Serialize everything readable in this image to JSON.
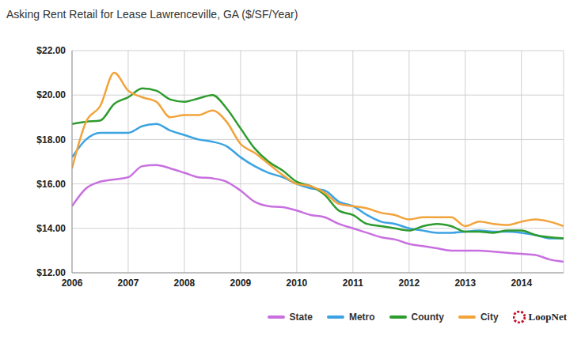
{
  "chart_data": {
    "type": "line",
    "title": "Asking Rent Retail for Lease Lawrenceville, GA ($/SF/Year)",
    "source": "LoopNet",
    "x": [
      2006,
      2006.25,
      2006.5,
      2006.75,
      2007,
      2007.25,
      2007.5,
      2007.75,
      2008,
      2008.25,
      2008.5,
      2008.75,
      2009,
      2009.25,
      2009.5,
      2009.75,
      2010,
      2010.25,
      2010.5,
      2010.75,
      2011,
      2011.25,
      2011.5,
      2011.75,
      2012,
      2012.25,
      2012.5,
      2012.75,
      2013,
      2013.25,
      2013.5,
      2013.75,
      2014,
      2014.25,
      2014.5,
      2014.75
    ],
    "series": [
      {
        "name": "State",
        "color": "#c86fe0",
        "values": [
          15.0,
          15.8,
          16.1,
          16.2,
          16.3,
          16.8,
          16.85,
          16.7,
          16.5,
          16.3,
          16.25,
          16.1,
          15.7,
          15.2,
          15.0,
          14.95,
          14.8,
          14.6,
          14.5,
          14.2,
          14.0,
          13.8,
          13.6,
          13.5,
          13.3,
          13.2,
          13.1,
          13.0,
          13.0,
          13.0,
          12.95,
          12.9,
          12.85,
          12.8,
          12.6,
          12.5
        ]
      },
      {
        "name": "Metro",
        "color": "#3ba3e3",
        "values": [
          17.2,
          18.0,
          18.3,
          18.3,
          18.3,
          18.6,
          18.7,
          18.4,
          18.2,
          18.0,
          17.9,
          17.7,
          17.2,
          16.8,
          16.5,
          16.3,
          16.0,
          15.8,
          15.7,
          15.2,
          15.0,
          14.6,
          14.3,
          14.2,
          14.0,
          13.9,
          13.8,
          13.8,
          13.85,
          13.9,
          13.85,
          13.85,
          13.8,
          13.7,
          13.55,
          13.55
        ]
      },
      {
        "name": "County",
        "color": "#2e9b2e",
        "values": [
          18.7,
          18.8,
          18.85,
          19.6,
          19.9,
          20.3,
          20.2,
          19.8,
          19.7,
          19.85,
          20.0,
          19.4,
          18.5,
          17.6,
          17.0,
          16.6,
          16.1,
          15.9,
          15.5,
          14.8,
          14.6,
          14.2,
          14.1,
          14.0,
          13.9,
          14.1,
          14.2,
          14.1,
          13.85,
          13.85,
          13.8,
          13.9,
          13.9,
          13.7,
          13.6,
          13.55
        ]
      },
      {
        "name": "City",
        "color": "#f2a33a",
        "values": [
          16.7,
          18.8,
          19.5,
          21.0,
          20.2,
          19.9,
          19.7,
          19.0,
          19.1,
          19.1,
          19.3,
          18.8,
          17.8,
          17.4,
          16.9,
          16.4,
          16.0,
          15.9,
          15.6,
          15.1,
          15.0,
          14.9,
          14.7,
          14.6,
          14.4,
          14.5,
          14.5,
          14.5,
          14.1,
          14.3,
          14.2,
          14.15,
          14.3,
          14.4,
          14.3,
          14.1
        ]
      }
    ],
    "xlim": [
      2006,
      2014.75
    ],
    "xticks": [
      2006,
      2007,
      2008,
      2009,
      2010,
      2011,
      2012,
      2013,
      2014
    ],
    "ylim": [
      12,
      22
    ],
    "yticks": [
      {
        "value": 12,
        "label": "$12.00"
      },
      {
        "value": 14,
        "label": "$14.00"
      },
      {
        "value": 16,
        "label": "$16.00"
      },
      {
        "value": 18,
        "label": "$18.00"
      },
      {
        "value": 20,
        "label": "$20.00"
      },
      {
        "value": 22,
        "label": "$22.00"
      }
    ],
    "grid": true,
    "legend": "bottom right"
  }
}
